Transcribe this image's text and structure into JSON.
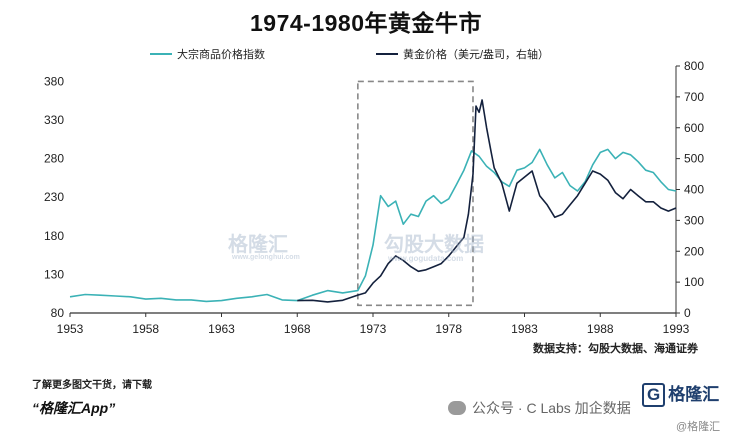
{
  "title": "1974-1980年黄金牛市",
  "source": "数据支持：勾股大数据、海通证券",
  "watermarks": {
    "logo": "格隆汇",
    "logo_sub": "www.gelonghui.com",
    "brand": "勾股大数据",
    "brand_sub": "www.gogudata.com"
  },
  "footer": {
    "note": "了解更多图文干货，请下载",
    "app": "“格隆汇App”",
    "wechat": "公众号 · C Labs 加企数据",
    "logo": "格隆汇",
    "logo_mark": "G",
    "logo2": "@格隆汇"
  },
  "colors": {
    "commodity": "#3bb2b6",
    "gold": "#14213d",
    "box": "#888888"
  },
  "chart_data": {
    "type": "line",
    "title": "1974-1980年黄金牛市",
    "xlim": [
      1953,
      1993
    ],
    "x_ticks": [
      1953,
      1958,
      1963,
      1968,
      1973,
      1978,
      1983,
      1988,
      1993
    ],
    "y_left": {
      "lim": [
        80,
        400
      ],
      "ticks": [
        80,
        130,
        180,
        230,
        280,
        330,
        380
      ]
    },
    "y_right": {
      "lim": [
        0,
        800
      ],
      "ticks": [
        0,
        100,
        200,
        300,
        400,
        500,
        600,
        700,
        800
      ]
    },
    "highlight_box": {
      "x": [
        1972,
        1979.6
      ],
      "y_left": [
        90,
        380
      ]
    },
    "legend": [
      "大宗商品价格指数",
      "黄金价格（美元/盎司，右轴）"
    ],
    "series": [
      {
        "name": "大宗商品价格指数",
        "axis": "left",
        "x": [
          1953,
          1954,
          1955,
          1956,
          1957,
          1958,
          1959,
          1960,
          1961,
          1962,
          1963,
          1964,
          1965,
          1966,
          1967,
          1968,
          1969,
          1970,
          1971,
          1972,
          1972.5,
          1973,
          1973.5,
          1974,
          1974.5,
          1975,
          1975.5,
          1976,
          1976.5,
          1977,
          1977.5,
          1978,
          1978.5,
          1979,
          1979.5,
          1980,
          1980.5,
          1981,
          1981.5,
          1982,
          1982.5,
          1983,
          1983.5,
          1984,
          1984.5,
          1985,
          1985.5,
          1986,
          1986.5,
          1987,
          1987.5,
          1988,
          1988.5,
          1989,
          1989.5,
          1990,
          1990.5,
          1991,
          1991.5,
          1992,
          1992.5,
          1993
        ],
        "y": [
          101,
          104,
          103,
          102,
          101,
          98,
          99,
          97,
          97,
          95,
          96,
          99,
          101,
          104,
          97,
          96,
          103,
          109,
          106,
          109,
          128,
          168,
          232,
          218,
          225,
          195,
          208,
          205,
          225,
          232,
          222,
          228,
          246,
          265,
          290,
          283,
          270,
          262,
          250,
          244,
          265,
          268,
          275,
          292,
          272,
          255,
          262,
          245,
          238,
          250,
          272,
          288,
          292,
          280,
          288,
          285,
          276,
          265,
          262,
          250,
          240,
          238
        ]
      },
      {
        "name": "黄金价格（美元/盎司，右轴）",
        "axis": "right",
        "x": [
          1968,
          1969,
          1970,
          1971,
          1972,
          1972.5,
          1973,
          1973.5,
          1974,
          1974.5,
          1975,
          1975.5,
          1976,
          1976.5,
          1977,
          1977.5,
          1978,
          1978.5,
          1979,
          1979.3,
          1979.6,
          1979.8,
          1980,
          1980.2,
          1980.5,
          1980.8,
          1981,
          1981.5,
          1982,
          1982.5,
          1983,
          1983.5,
          1984,
          1984.5,
          1985,
          1985.5,
          1986,
          1986.5,
          1987,
          1987.5,
          1988,
          1988.5,
          1989,
          1989.5,
          1990,
          1990.5,
          1991,
          1991.5,
          1992,
          1992.5,
          1993
        ],
        "y": [
          40,
          41,
          36,
          41,
          58,
          65,
          97,
          120,
          160,
          185,
          170,
          150,
          135,
          140,
          150,
          160,
          185,
          215,
          245,
          320,
          450,
          670,
          650,
          690,
          600,
          520,
          470,
          420,
          330,
          420,
          440,
          460,
          380,
          350,
          310,
          320,
          350,
          380,
          420,
          460,
          450,
          430,
          390,
          370,
          400,
          380,
          360,
          360,
          340,
          330,
          340
        ]
      }
    ]
  }
}
